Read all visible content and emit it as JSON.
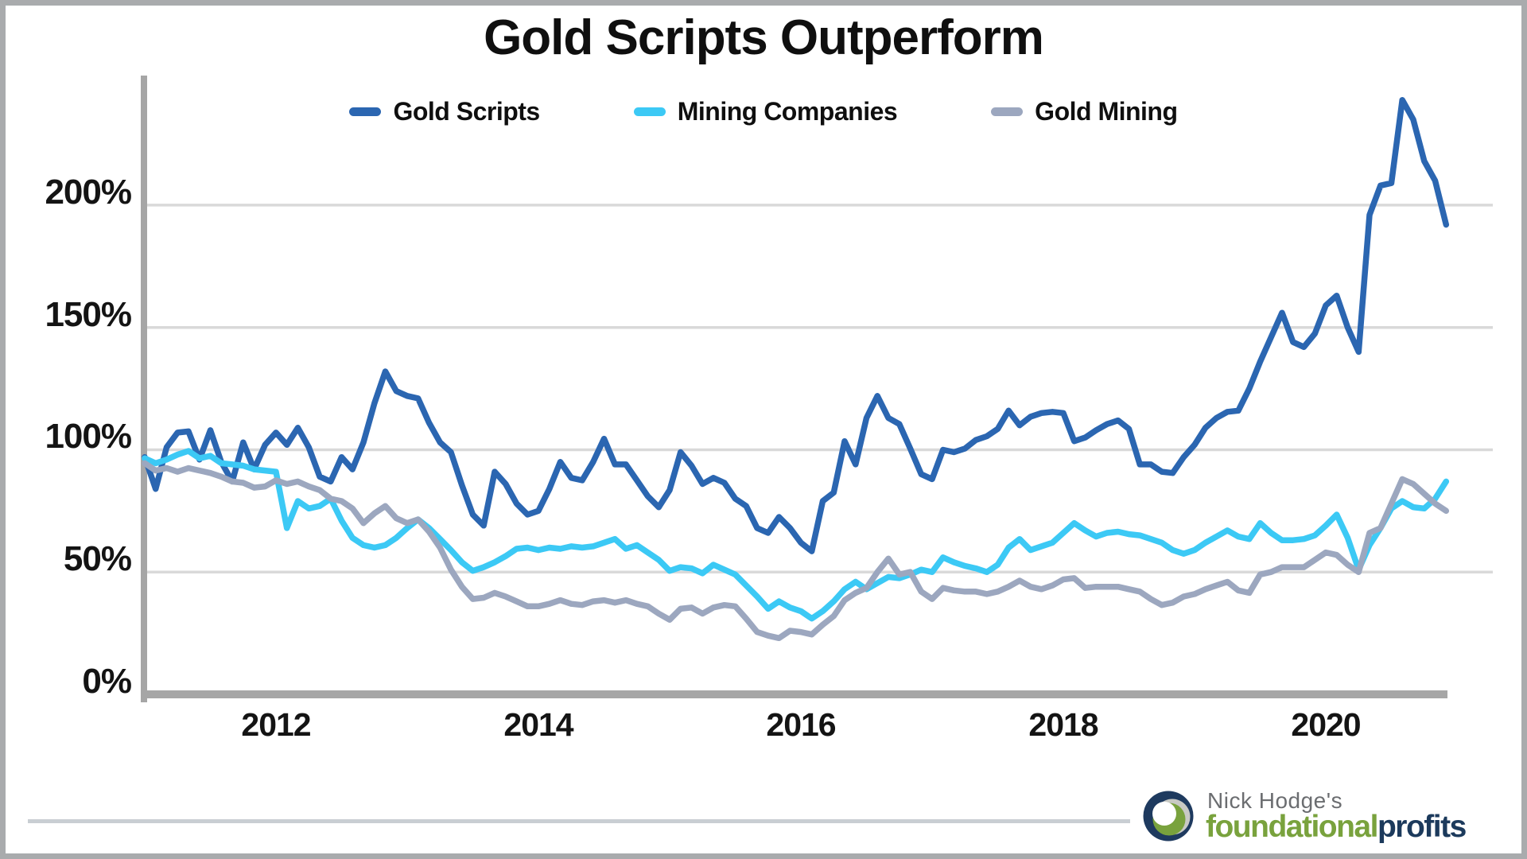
{
  "title": "Gold Scripts Outperform",
  "legend": {
    "position": "top",
    "items": [
      {
        "label": "Gold Scripts",
        "color": "#2B66B1"
      },
      {
        "label": "Mining Companies",
        "color": "#3CC9F5"
      },
      {
        "label": "Gold Mining",
        "color": "#9CA7BF"
      }
    ]
  },
  "chart_data": {
    "type": "line",
    "title": "Gold Scripts Outperform",
    "xlabel": "",
    "ylabel": "",
    "grid": "horizontal-only",
    "grid_color": "#D9D9D9",
    "axis_color": "#A6A6A6",
    "xlim": [
      2011.0,
      2021.27
    ],
    "ylim": [
      0,
      253
    ],
    "x_start_year": 2011.0,
    "x_interval": "monthly",
    "x_end_year": 2020.92,
    "x_ticks": [
      {
        "label": "2012",
        "year": 2012
      },
      {
        "label": "2014",
        "year": 2014
      },
      {
        "label": "2016",
        "year": 2016
      },
      {
        "label": "2018",
        "year": 2018
      },
      {
        "label": "2020",
        "year": 2020
      }
    ],
    "y_ticks": [
      {
        "label": "0%",
        "value": 0
      },
      {
        "label": "50%",
        "value": 50
      },
      {
        "label": "100%",
        "value": 100
      },
      {
        "label": "150%",
        "value": 150
      },
      {
        "label": "200%",
        "value": 200
      }
    ],
    "series": [
      {
        "name": "Gold Scripts",
        "color": "#2B66B1",
        "values": [
          97,
          84,
          101,
          107,
          107.5,
          96,
          108,
          95,
          87,
          103,
          92,
          102,
          107,
          102,
          109,
          101,
          89,
          87,
          97,
          92,
          103,
          119,
          132,
          124,
          122,
          121,
          111,
          103,
          99,
          85.5,
          73.5,
          69,
          91,
          86,
          78,
          73.5,
          75,
          84,
          95,
          88.5,
          87.5,
          95,
          104.5,
          94,
          94,
          87.5,
          81,
          76.5,
          83.5,
          99,
          93.5,
          86,
          88.5,
          86.5,
          80,
          77,
          68,
          66,
          72.5,
          68,
          62,
          58.5,
          79,
          82.5,
          103.5,
          94,
          113,
          122,
          113,
          110.5,
          100.5,
          90,
          88,
          100,
          99,
          100.5,
          104,
          105.5,
          108.5,
          116,
          110,
          113.5,
          115,
          115.5,
          115,
          103.5,
          105,
          108,
          110.5,
          112,
          108.5,
          94,
          94,
          91,
          90.5,
          97,
          102,
          109,
          113,
          115.5,
          116,
          125,
          136,
          146,
          156,
          144,
          142,
          147.5,
          159,
          163,
          150,
          140,
          196,
          208,
          209,
          243,
          235,
          218,
          210,
          192
        ]
      },
      {
        "name": "Mining Companies",
        "color": "#3CC9F5",
        "values": [
          96.5,
          94.5,
          96,
          98,
          99.5,
          96.5,
          97.5,
          94.5,
          94,
          93.5,
          92,
          91.5,
          91,
          68,
          79,
          76,
          77,
          80,
          71,
          64,
          61,
          60,
          61,
          64,
          68,
          71.5,
          68,
          63.5,
          59,
          54,
          50.5,
          52,
          54,
          56.5,
          59.5,
          60,
          59,
          60,
          59.5,
          60.5,
          60,
          60.5,
          62,
          63.5,
          59.5,
          61,
          58,
          55,
          50.5,
          52,
          51.5,
          49.5,
          53,
          51,
          49,
          44.5,
          40,
          35,
          38,
          35.5,
          34,
          31,
          34,
          38,
          43,
          46,
          43,
          45.5,
          48,
          47.5,
          49,
          51,
          50,
          56,
          54,
          52.5,
          51.5,
          50,
          53,
          60,
          63.5,
          59,
          60.5,
          62,
          66,
          70,
          67,
          64.5,
          66,
          66.5,
          65.5,
          65,
          63.5,
          62,
          59,
          57.5,
          59,
          62,
          64.5,
          67,
          64.5,
          63.5,
          70,
          66,
          63,
          63,
          63.5,
          65,
          69,
          73.5,
          64,
          51,
          61,
          68,
          76,
          79,
          76.5,
          76,
          80,
          87
        ]
      },
      {
        "name": "Gold Mining",
        "color": "#9CA7BF",
        "values": [
          94.5,
          91.5,
          92.5,
          91,
          92.5,
          91.5,
          90.5,
          89,
          87,
          86.5,
          84.5,
          85,
          87.5,
          86,
          87,
          85,
          83.5,
          80,
          79,
          76,
          70,
          74,
          77,
          72,
          70,
          71.5,
          66.5,
          60,
          51,
          44,
          39,
          39.5,
          41.5,
          40,
          38,
          36,
          36,
          37,
          38.5,
          37,
          36.5,
          38,
          38.5,
          37.5,
          38.5,
          37,
          36,
          33,
          30.5,
          35,
          35.5,
          33,
          35.5,
          36.5,
          36,
          31,
          25.5,
          24,
          23,
          26,
          25.5,
          24.5,
          28.5,
          32,
          38.5,
          41.5,
          43.5,
          50,
          55.5,
          49,
          50,
          42,
          39,
          43.5,
          42.5,
          42,
          42,
          41,
          42,
          44,
          46.5,
          44,
          43,
          44.5,
          47,
          47.5,
          43.5,
          44,
          44,
          44,
          43,
          42,
          39,
          36.5,
          37.5,
          40,
          41,
          43,
          44.5,
          46,
          42.5,
          41.5,
          49,
          50,
          52,
          52,
          52,
          55,
          58,
          57,
          53,
          50,
          66,
          68,
          78,
          88,
          86,
          82,
          78,
          75
        ]
      }
    ]
  },
  "footer": {
    "brand_prefix": "Nick Hodge's",
    "brand_green": "foundational",
    "brand_navy": "profits",
    "logo_navy": "#1E3A5F",
    "logo_green": "#79A23D",
    "logo_gray": "#C8C9C4"
  }
}
